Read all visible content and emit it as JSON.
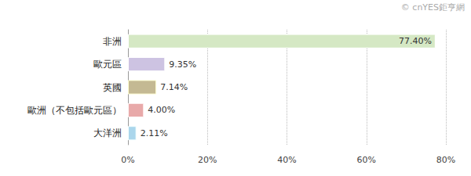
{
  "chart_data": {
    "type": "bar",
    "orientation": "horizontal",
    "categories": [
      "非洲",
      "歐元區",
      "英國",
      "歐洲（不包括歐元區）",
      "大洋洲"
    ],
    "values": [
      77.4,
      9.35,
      7.14,
      4.0,
      2.11
    ],
    "value_labels": [
      "77.40%",
      "9.35%",
      "7.14%",
      "4.00%",
      "2.11%"
    ],
    "colors": [
      "#d5e8c4",
      "#cdc3e2",
      "#c4b993",
      "#e8a9a9",
      "#aad6ec"
    ],
    "xlim": [
      0,
      80
    ],
    "xticks": [
      {
        "value": 0,
        "label": "0%"
      },
      {
        "value": 20,
        "label": "20%"
      },
      {
        "value": 40,
        "label": "40%"
      },
      {
        "value": 60,
        "label": "60%"
      },
      {
        "value": 80,
        "label": "80%"
      }
    ],
    "grid": true,
    "data_labels": true,
    "annotations": [
      "© cnYES鉅亨網"
    ]
  }
}
